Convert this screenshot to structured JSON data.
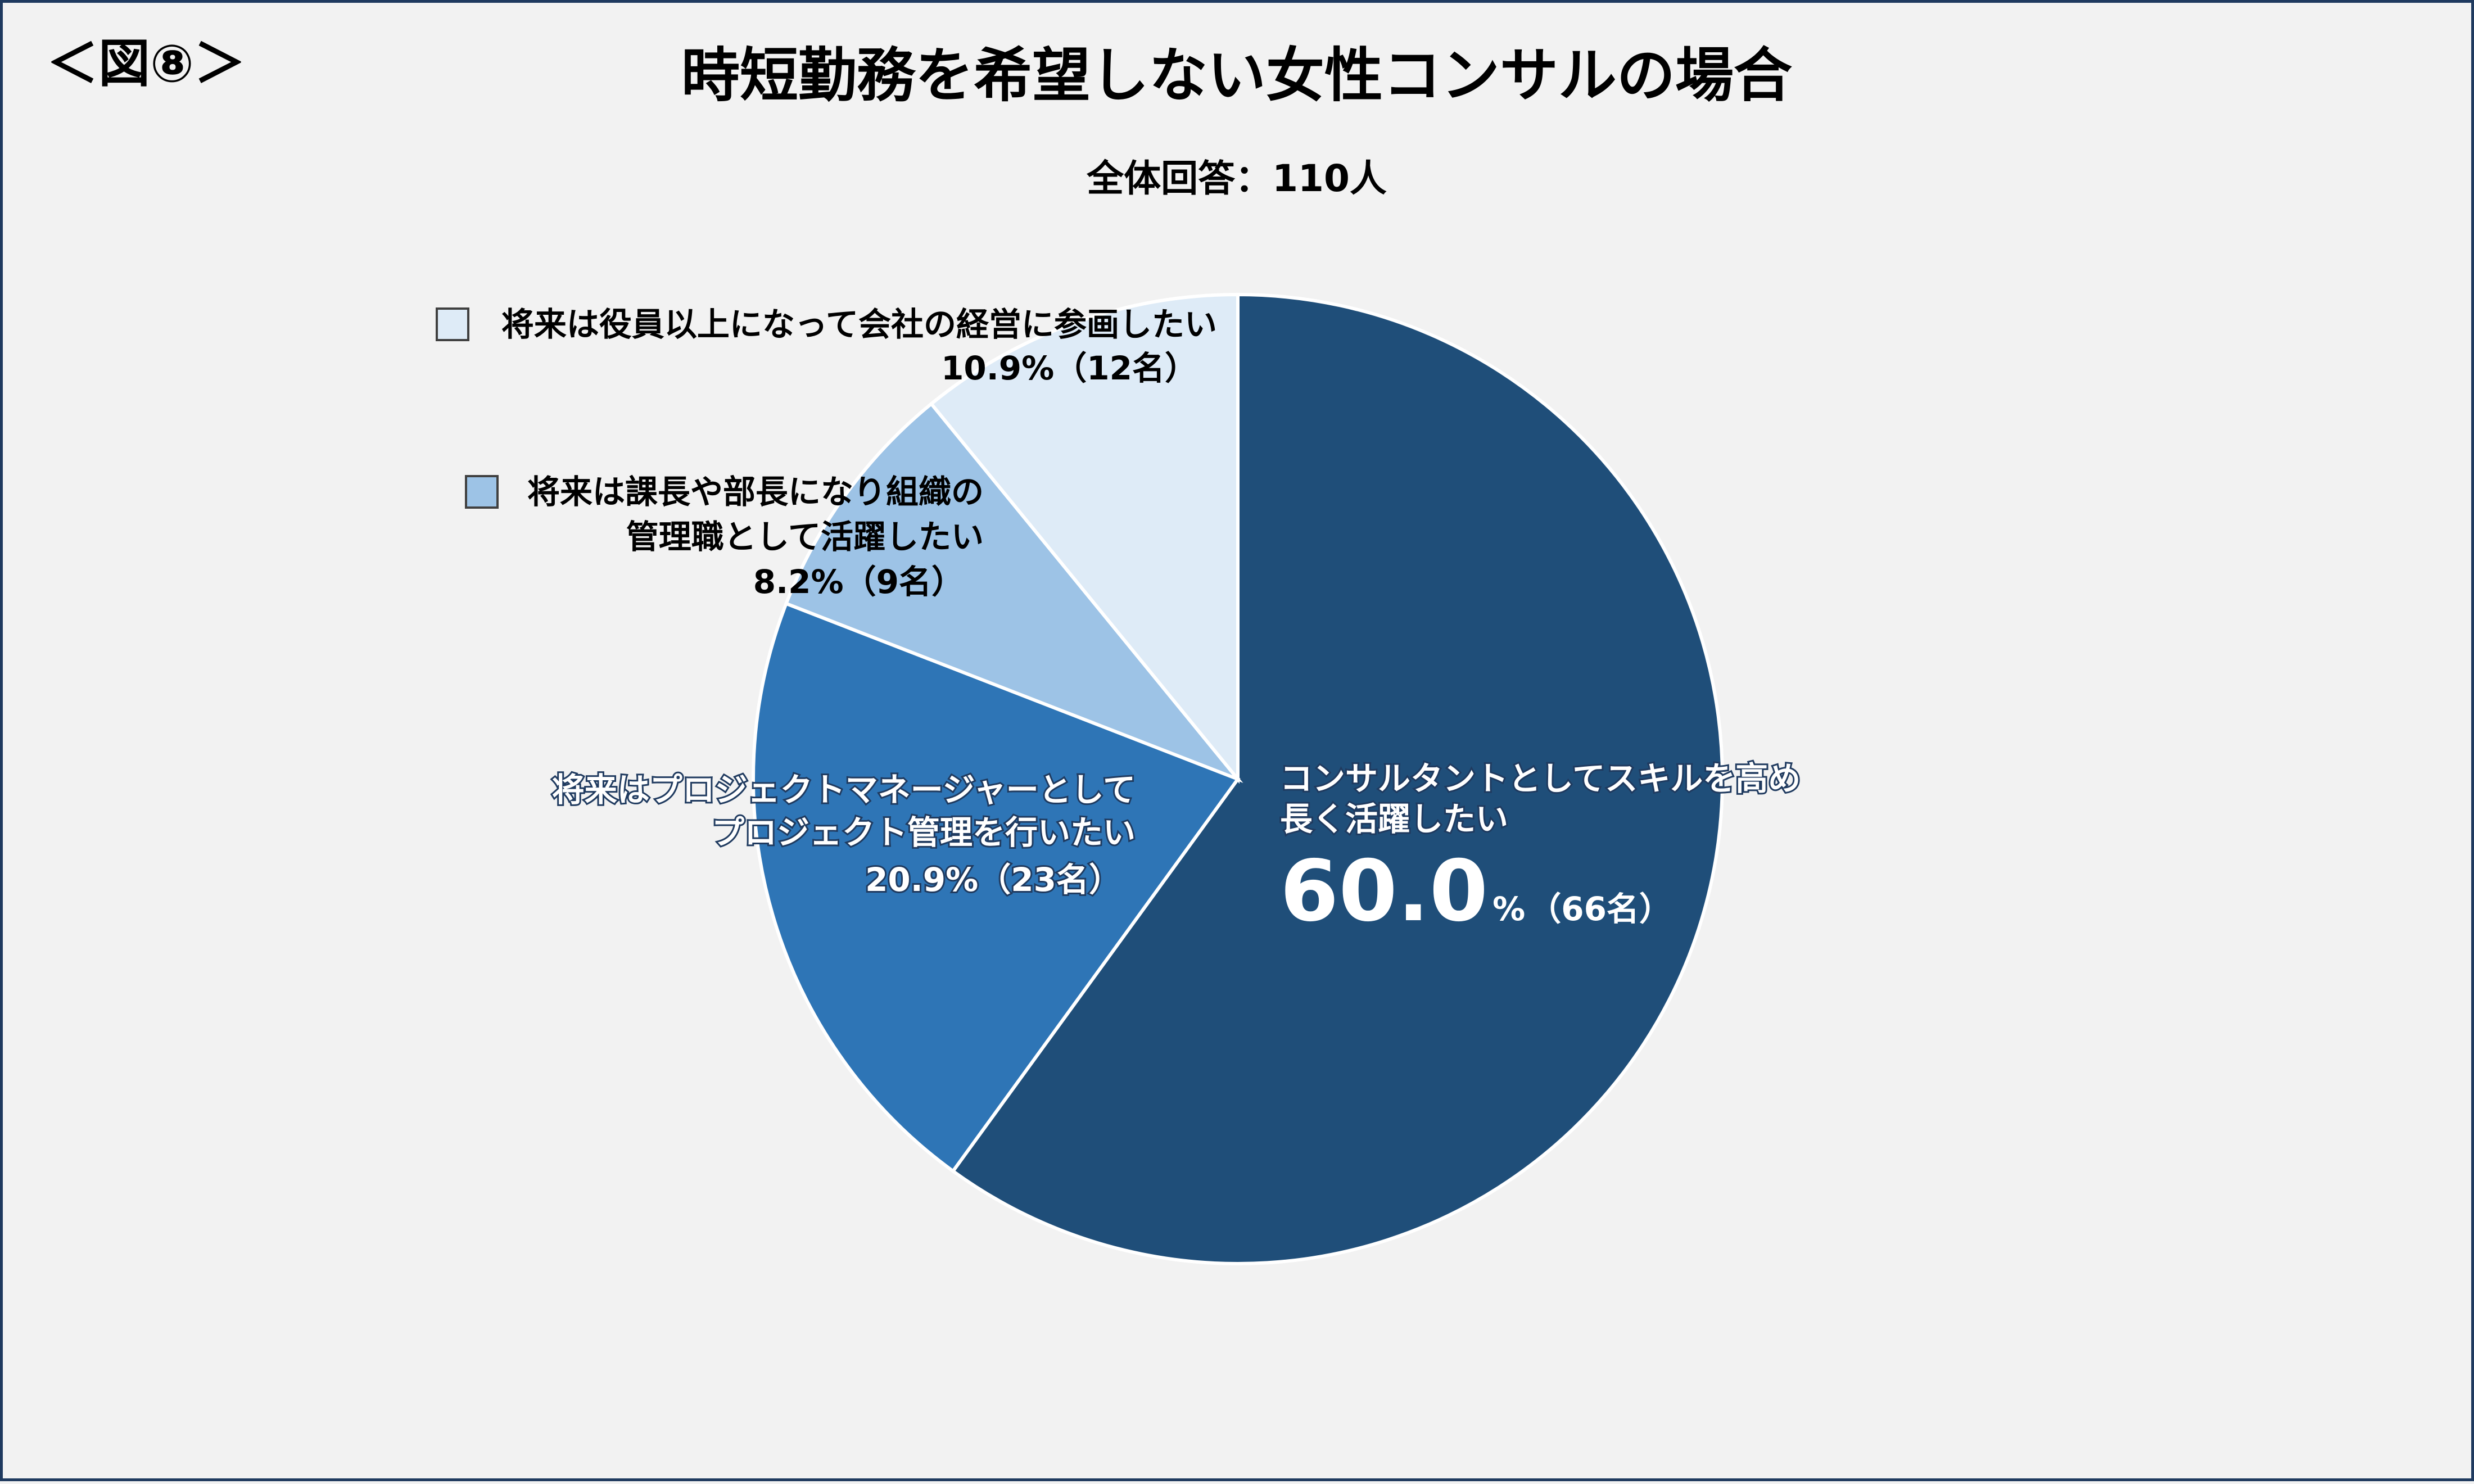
{
  "figure_tag": "＜図⑧＞",
  "chart_data": {
    "type": "pie",
    "title": "時短勤務を希望しない女性コンサルの場合",
    "subtitle": "全体回答：110人",
    "slices": [
      {
        "label_lines": [
          "コンサルタントとしてスキルを高め",
          "長く活躍したい"
        ],
        "percent": 60.0,
        "percent_text": "60.0",
        "percent_sign": "%",
        "count_text": "（66名）",
        "color": "#1f4e79"
      },
      {
        "label_lines": [
          "将来はプロジェクトマネージャーとして",
          "プロジェクト管理を行いたい"
        ],
        "percent": 20.9,
        "value_text": "20.9%（23名）",
        "color": "#2e75b6"
      },
      {
        "label_lines": [
          "将来は課長や部長になり組織の",
          "管理職として活躍したい"
        ],
        "percent": 8.2,
        "value_text": "8.2%（9名）",
        "color": "#9dc3e6"
      },
      {
        "label_lines": [
          "将来は役員以上になって会社の経営に参画したい"
        ],
        "percent": 10.9,
        "value_text": "10.9%（12名）",
        "color": "#deebf7"
      }
    ]
  }
}
